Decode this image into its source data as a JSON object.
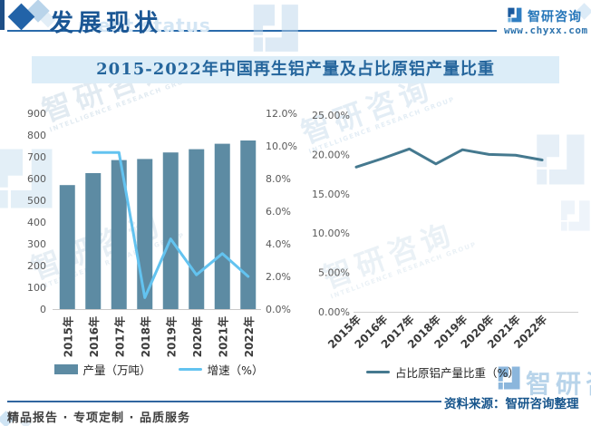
{
  "header": {
    "section_title": "发展现状",
    "section_subtitle_ghost": "ment status",
    "brand_name": "智研咨询",
    "brand_url": "www.chyxx.com"
  },
  "title": "2015-2022年中国再生铝产量及占比原铝产量比重",
  "watermark": {
    "brand": "智研咨询",
    "brand_en": "INTELLIGENCE RESEARCH GROUP"
  },
  "footer": {
    "source": "资料来源：智研咨询整理",
    "tagline": "精品报告 · 专项定制 · 品质服务"
  },
  "colors": {
    "header_blue": "#1a5694",
    "title_band_bg": "#dcedf8",
    "title_text": "#24659c",
    "bar": "#5d8ba3",
    "growth_line": "#63c3f0",
    "ratio_line": "#45798f",
    "axis_text": "#595959",
    "watermark_blue": "#2e77b5"
  },
  "chart_data": [
    {
      "type": "bar",
      "categories": [
        "2015年",
        "2016年",
        "2017年",
        "2018年",
        "2019年",
        "2020年",
        "2021年",
        "2022年"
      ],
      "series": [
        {
          "name": "产量（万吨）",
          "type": "bar",
          "axis": "left",
          "color": "#5d8ba3",
          "values": [
            570,
            625,
            685,
            690,
            720,
            735,
            760,
            775
          ]
        },
        {
          "name": "增速（%）",
          "type": "line",
          "axis": "right",
          "color": "#63c3f0",
          "values": [
            null,
            9.6,
            9.6,
            0.7,
            4.3,
            2.1,
            3.4,
            2.0
          ]
        }
      ],
      "left_axis": {
        "min": 0,
        "max": 900,
        "step": 100,
        "labels": [
          "0",
          "100",
          "200",
          "300",
          "400",
          "500",
          "600",
          "700",
          "800",
          "900"
        ]
      },
      "right_axis": {
        "min": 0,
        "max": 12,
        "step": 2,
        "labels": [
          "0.0%",
          "2.0%",
          "4.0%",
          "6.0%",
          "8.0%",
          "10.0%",
          "12.0%"
        ]
      },
      "legend_position": "bottom",
      "grid": false
    },
    {
      "type": "line",
      "categories": [
        "2015年",
        "2016年",
        "2017年",
        "2018年",
        "2019年",
        "2020年",
        "2021年",
        "2022年"
      ],
      "series": [
        {
          "name": "占比原铝产量比重（%）",
          "type": "line",
          "color": "#45798f",
          "values": [
            18.4,
            19.5,
            20.7,
            18.8,
            20.6,
            20.0,
            19.9,
            19.3
          ]
        }
      ],
      "y_axis": {
        "min": 0,
        "max": 25,
        "step": 5,
        "labels": [
          "0.00%",
          "5.00%",
          "10.00%",
          "15.00%",
          "20.00%",
          "25.00%"
        ]
      },
      "legend_position": "bottom",
      "grid": false
    }
  ]
}
